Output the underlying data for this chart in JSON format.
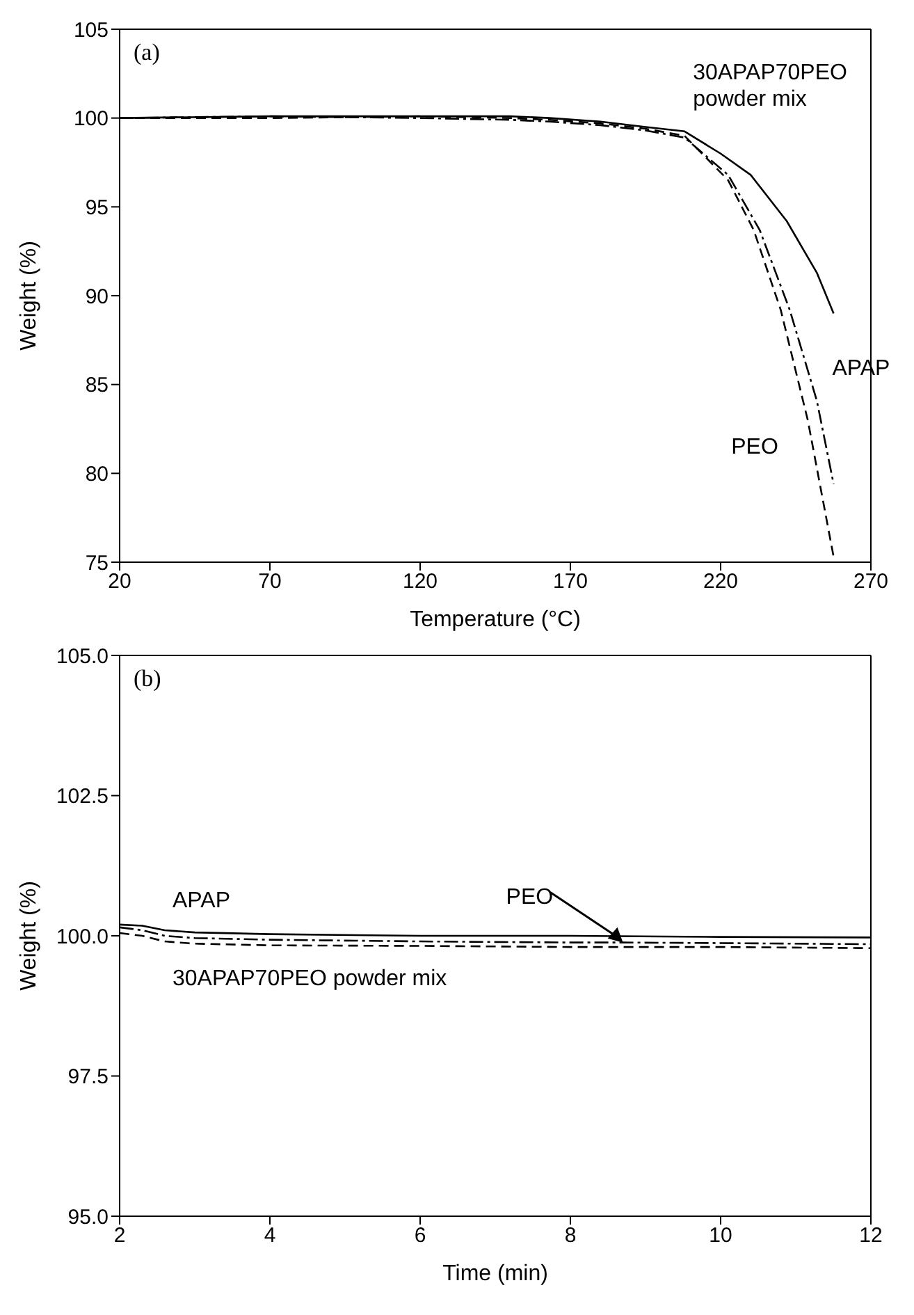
{
  "chart_data": [
    {
      "type": "line",
      "title": "(a)",
      "xlabel": "Temperature (°C)",
      "ylabel": "Weight (%)",
      "xlim": [
        20,
        270
      ],
      "xticks": [
        20,
        70,
        120,
        170,
        220,
        270
      ],
      "ylim": [
        75,
        105
      ],
      "yticks": [
        75,
        80,
        85,
        90,
        95,
        100,
        105
      ],
      "marker": "none",
      "series": [
        {
          "color": "#000000",
          "line_style": "solid",
          "x": [
            20,
            70,
            120,
            150,
            163,
            180,
            195,
            208,
            220,
            230,
            242,
            252,
            257.6
          ],
          "values": [
            100.0,
            100.1,
            100.1,
            100.1,
            100.0,
            99.8,
            99.5,
            99.25,
            98.0,
            96.8,
            94.2,
            91.3,
            89.0
          ]
        },
        {
          "color": "#000000",
          "line_style": "dashed",
          "x": [
            20,
            70,
            120,
            150,
            163,
            180,
            195,
            208,
            222.5,
            231,
            240,
            249,
            257.6
          ],
          "values": [
            100.0,
            100.0,
            100.1,
            100.0,
            99.9,
            99.7,
            99.4,
            99.0,
            96.5,
            93.7,
            89.2,
            83.0,
            75.3
          ]
        },
        {
          "color": "#000000",
          "line_style": "dashdot",
          "x": [
            20,
            70,
            120,
            150,
            163,
            180,
            195,
            208,
            222.5,
            233,
            243,
            252,
            257.6
          ],
          "values": [
            100.0,
            100.1,
            100.0,
            99.9,
            99.8,
            99.6,
            99.3,
            98.9,
            96.8,
            93.7,
            89.2,
            84.1,
            79.4
          ]
        }
      ],
      "annotations": [
        {
          "text": "30APAP70PEO\npowder mix",
          "x": 208,
          "y": 98.9
        },
        {
          "text": "APAP",
          "x": 257.6,
          "y": 89.0
        },
        {
          "text": "PEO",
          "x": 249,
          "y": 83.0
        }
      ]
    },
    {
      "type": "line",
      "title": "(b)",
      "xlabel": "Time (min)",
      "ylabel": "Weight (%)",
      "xlim": [
        2,
        12
      ],
      "xticks": [
        2,
        4,
        6,
        8,
        10,
        12
      ],
      "ylim": [
        95,
        105
      ],
      "yticks": [
        {
          "value": 95,
          "label": "95.0"
        },
        {
          "value": 97.5,
          "label": "97.5"
        },
        {
          "value": 100,
          "label": "100.0"
        },
        {
          "value": 102.5,
          "label": "102.5"
        },
        {
          "value": 105,
          "label": "105.0"
        }
      ],
      "marker": "none",
      "series": [
        {
          "color": "#000000",
          "line_style": "solid",
          "x": [
            2,
            2.3,
            2.6,
            3,
            4,
            6,
            8,
            10,
            12
          ],
          "values": [
            100.2,
            100.18,
            100.1,
            100.06,
            100.03,
            100.0,
            100.0,
            99.98,
            99.97
          ]
        },
        {
          "color": "#000000",
          "line_style": "dashdot",
          "x": [
            2,
            2.3,
            2.6,
            3,
            4,
            6,
            8,
            8.7,
            10,
            12
          ],
          "values": [
            100.15,
            100.1,
            100.0,
            99.96,
            99.93,
            99.9,
            99.88,
            99.88,
            99.87,
            99.85
          ]
        },
        {
          "color": "#000000",
          "line_style": "dashed",
          "x": [
            2,
            2.3,
            2.6,
            3,
            4,
            6,
            8,
            10,
            12
          ],
          "values": [
            100.05,
            100.0,
            99.9,
            99.86,
            99.83,
            99.82,
            99.8,
            99.8,
            99.78
          ]
        }
      ],
      "annotations": [
        {
          "text": "APAP",
          "x": 3,
          "y": 100.06
        },
        {
          "text": "PEO",
          "x": 8.7,
          "y": 99.88
        },
        {
          "text": "30APAP70PEO powder mix",
          "x": 3,
          "y": 99.86
        }
      ]
    }
  ]
}
